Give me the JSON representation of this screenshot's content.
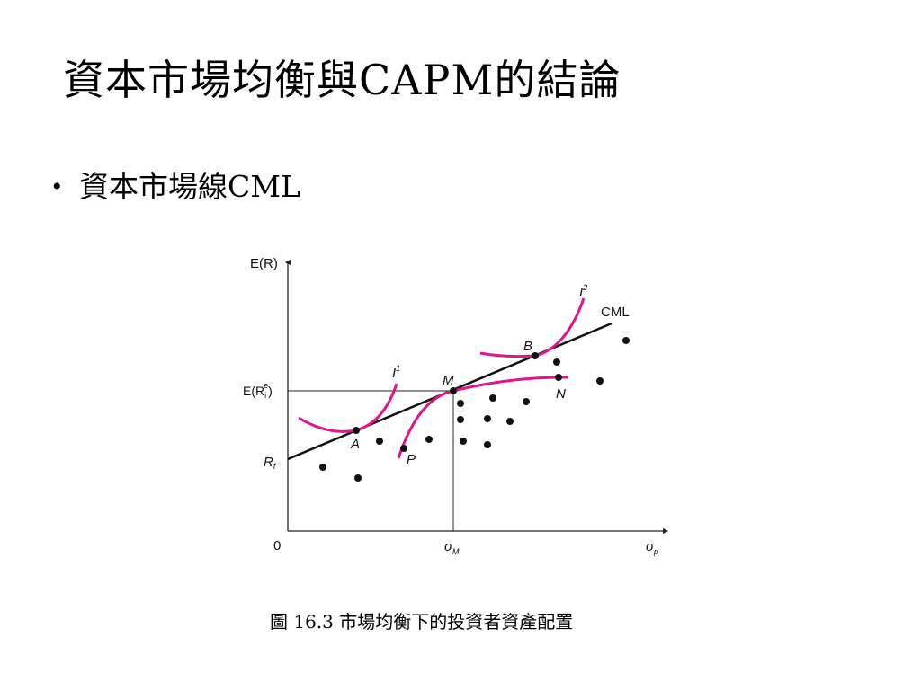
{
  "title": "資本市場均衡與CAPM的結論",
  "bullet": {
    "marker": "•",
    "text": "資本市場線CML"
  },
  "diagram": {
    "y_axis_label_main": "E(R)",
    "x_origin_label": "0",
    "x_axis_label_main": "σ",
    "x_axis_label_sub": "p",
    "sigma_m_main": "σ",
    "sigma_m_sub": "M",
    "equilibrium_return_main": "E(R",
    "equilibrium_return_sub": "i",
    "equilibrium_return_sup": "e",
    "equilibrium_return_end": ")",
    "rf_main": "R",
    "rf_sub": "f",
    "cml_label": "CML",
    "indifference_1_main": "I",
    "indifference_1_sup": "1",
    "indifference_2_main": "I",
    "indifference_2_sup": "2",
    "point_a_label": "A",
    "point_b_label": "B",
    "point_m_label": "M",
    "point_n_label": "N",
    "point_p_label": "P",
    "colors": {
      "axes": "#222222",
      "cml": "#111111",
      "curves": "#e0158b",
      "points": "#111111"
    }
  },
  "caption": "圖 16.3 市場均衡下的投資者資產配置"
}
